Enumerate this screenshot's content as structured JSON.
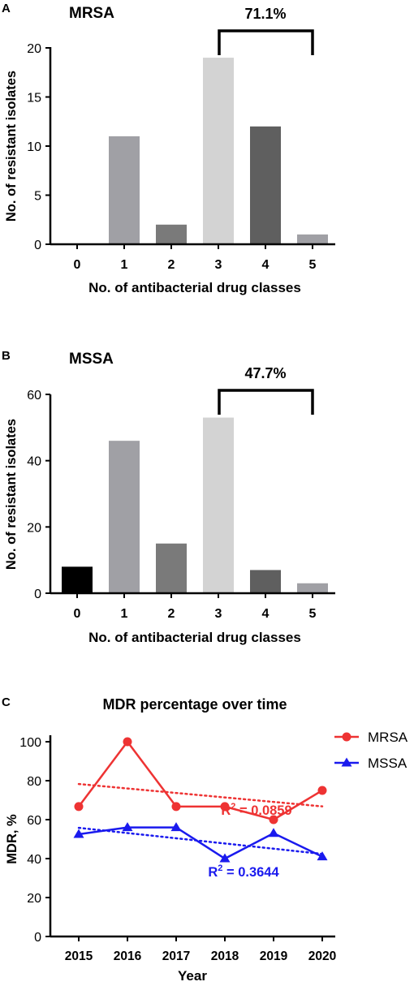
{
  "chart_data": [
    {
      "panel_letter": "A",
      "type": "bar",
      "title": "MRSA",
      "xlabel": "No. of antibacterial drug classes",
      "ylabel": "No. of resistant isolates",
      "categories": [
        "0",
        "1",
        "2",
        "3",
        "4",
        "5"
      ],
      "values": [
        0,
        11,
        2,
        19,
        12,
        1
      ],
      "bar_colors": [
        "#000000",
        "#a0a0a5",
        "#7a7a7a",
        "#d3d3d3",
        "#5f5f5f",
        "#a0a0a5"
      ],
      "ylim": [
        0,
        20
      ],
      "yticks": [
        "0",
        "5",
        "10",
        "15",
        "20"
      ],
      "bracket": {
        "label": "71.1%",
        "from_category": "3",
        "to_category": "5"
      }
    },
    {
      "panel_letter": "B",
      "type": "bar",
      "title": "MSSA",
      "xlabel": "No. of antibacterial drug classes",
      "ylabel": "No. of resistant isolates",
      "categories": [
        "0",
        "1",
        "2",
        "3",
        "4",
        "5"
      ],
      "values": [
        8,
        46,
        15,
        53,
        7,
        3
      ],
      "bar_colors": [
        "#000000",
        "#a0a0a5",
        "#7a7a7a",
        "#d3d3d3",
        "#5f5f5f",
        "#a0a0a5"
      ],
      "ylim": [
        0,
        60
      ],
      "yticks": [
        "0",
        "20",
        "40",
        "60"
      ],
      "bracket": {
        "label": "47.7%",
        "from_category": "3",
        "to_category": "5"
      }
    },
    {
      "panel_letter": "C",
      "type": "line",
      "title": "MDR percentage over time",
      "xlabel": "Year",
      "ylabel": "MDR, %",
      "x": [
        "2015",
        "2016",
        "2017",
        "2018",
        "2019",
        "2020"
      ],
      "ylim": [
        0,
        100
      ],
      "yticks": [
        "0",
        "20",
        "40",
        "60",
        "80",
        "100"
      ],
      "series": [
        {
          "name": "MRSA",
          "values": [
            66.7,
            100,
            66.7,
            66.7,
            60,
            75
          ],
          "color": "#ee3333",
          "marker": "circle",
          "trend": [
            78.3,
            66.8
          ],
          "r2_label": "R",
          "r2_value": "= 0.0859"
        },
        {
          "name": "MSSA",
          "values": [
            52.5,
            56,
            56,
            40,
            53,
            41
          ],
          "color": "#1a1aee",
          "marker": "triangle",
          "trend": [
            55.8,
            42.4
          ],
          "r2_label": "R",
          "r2_value": "= 0.3644"
        }
      ],
      "legend_position": "top-right"
    }
  ]
}
